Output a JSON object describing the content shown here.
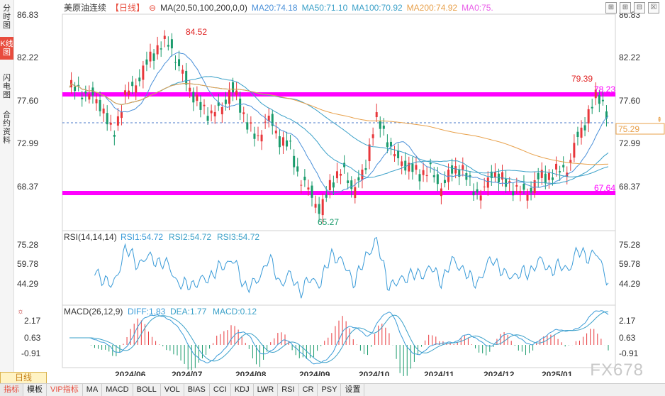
{
  "left_tabs": [
    "分时图",
    "K线图",
    "闪电图",
    "合约资料"
  ],
  "title": {
    "name": "美原油连续",
    "period": "【日线】",
    "ma_label": "MA(20,50,100,200,0,0)",
    "ma20": "MA20:74.18",
    "ma50": "MA50:71.10",
    "ma100": "MA100:70.92",
    "ma200": "MA200:74.92",
    "ma75": "MA0:75."
  },
  "price_axis": [
    "86.83",
    "82.22",
    "77.60",
    "72.99",
    "68.37"
  ],
  "price_annotations": {
    "high": "84.52",
    "low": "65.27",
    "recent_high": "79.39",
    "resistance": "78.23",
    "support": "67.64",
    "current": "75.29"
  },
  "rsi": {
    "label": "RSI(14,14,14)",
    "rsi1": "RSI1:54.72",
    "rsi2": "RSI2:54.72",
    "rsi3": "RSI3:54.72",
    "axis": [
      "75.28",
      "59.78",
      "44.29"
    ]
  },
  "macd": {
    "label": "MACD(26,12,9)",
    "diff": "DIFF:1.83",
    "dea": "DEA:1.77",
    "macd": "MACD:0.12",
    "axis": [
      "2.17",
      "0.63",
      "-0.91"
    ]
  },
  "dates": [
    "2024/06",
    "2024/07",
    "2024/08",
    "2024/09",
    "2024/10",
    "2024/11",
    "2024/12",
    "2025/01"
  ],
  "period_tab": "日线",
  "bottom_bar": [
    "指标",
    "模板",
    "VIP指标",
    "MA",
    "MACD",
    "BOLL",
    "VOL",
    "BIAS",
    "CCI",
    "KDJ",
    "LWR",
    "RSI",
    "CR",
    "PSY",
    "设置"
  ],
  "watermark": "FX678",
  "colors": {
    "up": "#e8373b",
    "down": "#1a9b6c",
    "ma20": "#4a90d9",
    "ma50": "#3aa0c8",
    "ma200": "#e8a04a",
    "ma75": "#e85ee8",
    "level_line": "#ff00ff",
    "rsi_line": "#3a9bd8",
    "annot_red": "#e02020"
  }
}
